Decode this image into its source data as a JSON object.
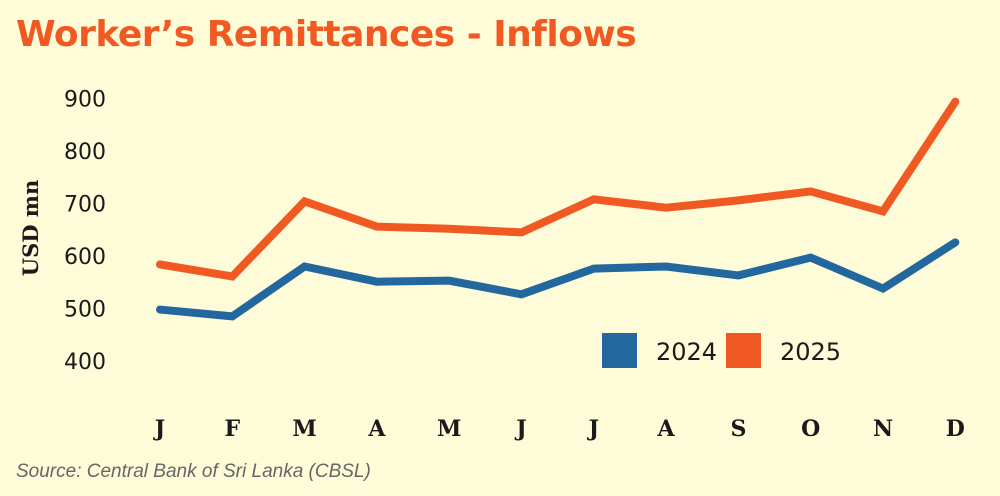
{
  "chart_data": {
    "type": "line",
    "title": "Worker’s Remittances - Inflows",
    "ylabel": "USD mn",
    "xlabel": "",
    "categories": [
      "J",
      "F",
      "M",
      "A",
      "M",
      "J",
      "J",
      "A",
      "S",
      "O",
      "N",
      "D"
    ],
    "yticks": [
      400,
      500,
      600,
      700,
      800,
      900
    ],
    "ylim": [
      400,
      900
    ],
    "grid": false,
    "legend_position": "bottom-right",
    "series": [
      {
        "name": "2024",
        "color": "#23679f",
        "values": [
          498,
          485,
          580,
          551,
          553,
          527,
          576,
          580,
          563,
          597,
          538,
          626
        ]
      },
      {
        "name": "2025",
        "color": "#f05a22",
        "values": [
          584,
          561,
          704,
          656,
          652,
          645,
          708,
          692,
          706,
          723,
          685,
          894
        ]
      }
    ],
    "source": "Source: Central Bank of Sri Lanka (CBSL)"
  }
}
